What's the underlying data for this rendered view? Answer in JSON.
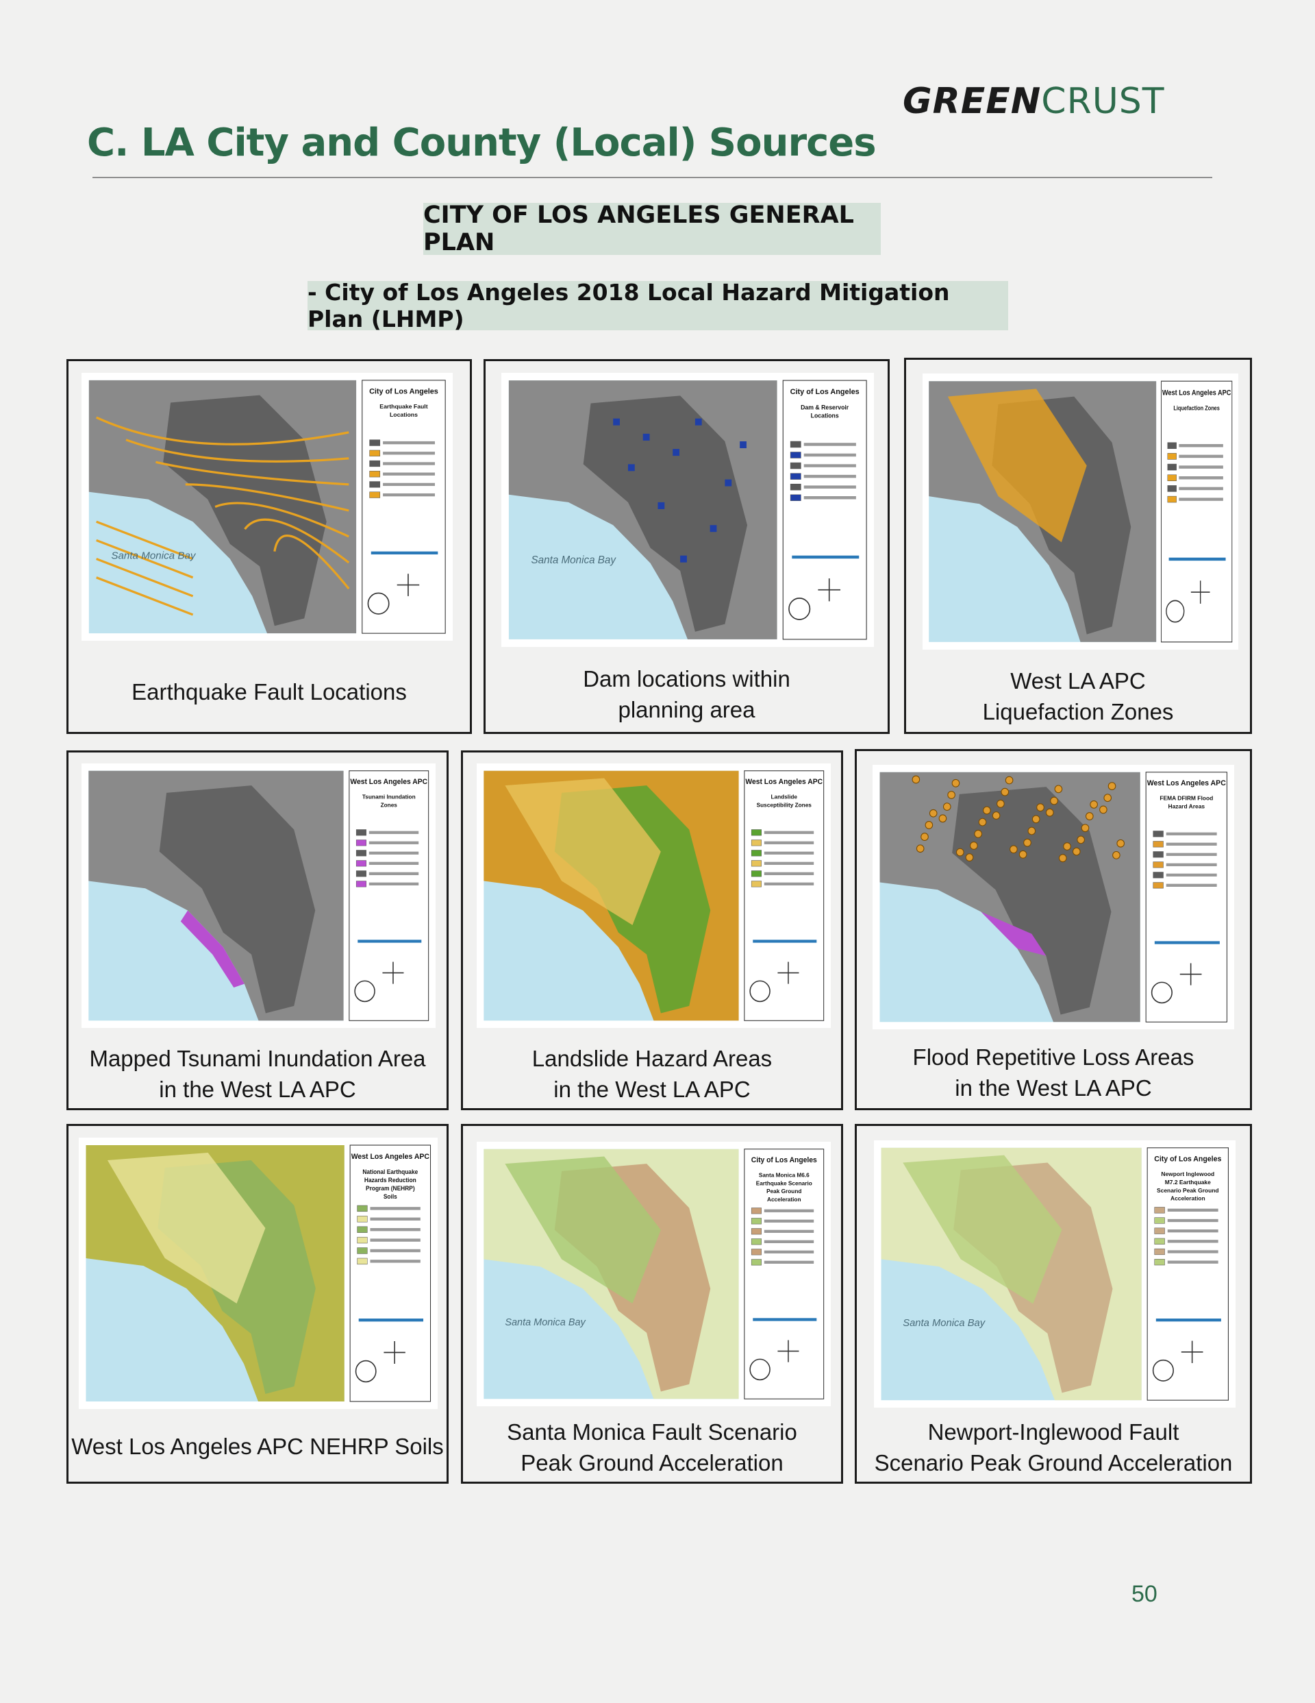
{
  "header": {
    "logo_bold": "GREEN",
    "logo_light": "CRUST",
    "title": "C. LA City and County (Local) Sources"
  },
  "section": {
    "heading": "CITY OF LOS ANGELES GENERAL PLAN",
    "subheading": "- City of Los Angeles 2018 Local Hazard Mitigation Plan (LHMP)"
  },
  "maps": [
    {
      "caption_lines": [
        "Earthquake Fault Locations"
      ],
      "legend_title": "City of Los Angeles",
      "legend_subtitle": "Earthquake Fault Locations",
      "bay_label": "Santa Monica Bay"
    },
    {
      "caption_lines": [
        "Dam locations within",
        "planning area"
      ],
      "legend_title": "City of Los Angeles",
      "legend_subtitle": "Dam & Reservoir Locations",
      "bay_label": "Santa Monica Bay"
    },
    {
      "caption_lines": [
        "West LA APC",
        "Liquefaction Zones"
      ],
      "legend_title": "West Los Angeles APC",
      "legend_subtitle": "Liquefaction Zones",
      "bay_label": ""
    },
    {
      "caption_lines": [
        "Mapped Tsunami Inundation Area",
        "in the West LA APC"
      ],
      "legend_title": "West Los Angeles APC",
      "legend_subtitle": "Tsunami Inundation Zones",
      "bay_label": ""
    },
    {
      "caption_lines": [
        "Landslide Hazard Areas",
        "in the West LA APC"
      ],
      "legend_title": "West Los Angeles APC",
      "legend_subtitle": "Landslide Susceptibility Zones",
      "bay_label": ""
    },
    {
      "caption_lines": [
        "Flood Repetitive Loss Areas",
        "in the West LA APC"
      ],
      "legend_title": "West Los Angeles APC",
      "legend_subtitle": "FEMA DFIRM Flood Hazard Areas",
      "bay_label": ""
    },
    {
      "caption_lines": [
        "West Los Angeles APC NEHRP Soils"
      ],
      "legend_title": "West Los Angeles APC",
      "legend_subtitle": "National Earthquake Hazards Reduction Program (NEHRP) Soils",
      "bay_label": ""
    },
    {
      "caption_lines": [
        "Santa Monica Fault Scenario",
        "Peak Ground Acceleration"
      ],
      "legend_title": "City of Los Angeles",
      "legend_subtitle": "Santa Monica M6.6 Earthquake Scenario Peak Ground Acceleration",
      "bay_label": "Santa Monica Bay"
    },
    {
      "caption_lines": [
        "Newport-Inglewood Fault",
        "Scenario Peak Ground Acceleration"
      ],
      "legend_title": "City of Los Angeles",
      "legend_subtitle": "Newport Inglewood M7.2 Earthquake Scenario Peak Ground Acceleration",
      "bay_label": "Santa Monica Bay"
    }
  ],
  "page_number": "50",
  "colors": {
    "brand_green": "#2d6b4b",
    "pill_bg": "#d4e1d8"
  }
}
